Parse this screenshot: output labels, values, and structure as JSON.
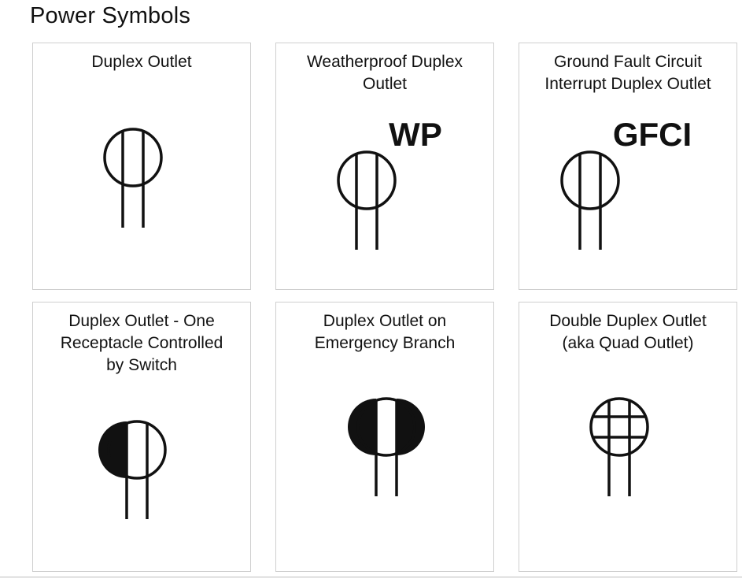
{
  "page": {
    "title": "Power Symbols"
  },
  "cards": [
    {
      "title": "Duplex Outlet",
      "symbol": "duplex-outlet-icon"
    },
    {
      "title": "Weatherproof Duplex\nOutlet",
      "symbol": "weatherproof-duplex-outlet-icon",
      "tag": "WP"
    },
    {
      "title": "Ground Fault Circuit\nInterrupt Duplex Outlet",
      "symbol": "gfci-duplex-outlet-icon",
      "tag": "GFCI"
    },
    {
      "title": "Duplex Outlet - One\nReceptacle Controlled\nby Switch",
      "symbol": "switched-duplex-outlet-icon"
    },
    {
      "title": "Duplex Outlet on\nEmergency Branch",
      "symbol": "emergency-duplex-outlet-icon"
    },
    {
      "title": "Double Duplex Outlet\n(aka Quad Outlet)",
      "symbol": "quad-outlet-icon"
    }
  ],
  "colors": {
    "stroke": "#111111",
    "border": "#cfcfcf",
    "background": "#ffffff"
  }
}
